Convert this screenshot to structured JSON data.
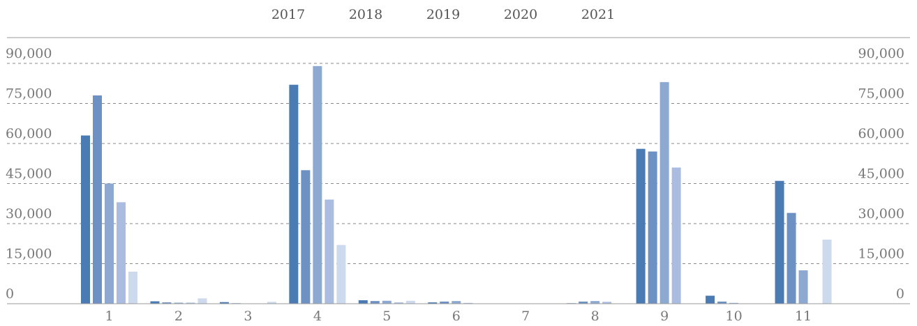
{
  "chart_data": {
    "type": "bar",
    "legend": {
      "placement": "top-center",
      "entries": [
        "2017",
        "2018",
        "2019",
        "2020",
        "2021"
      ]
    },
    "categories": [
      "1",
      "2",
      "3",
      "4",
      "5",
      "6",
      "7",
      "8",
      "9",
      "10",
      "11"
    ],
    "series": [
      {
        "name": "2017",
        "color": "#4a7bb3",
        "values": [
          63000,
          900,
          600,
          82000,
          1300,
          500,
          100,
          200,
          58000,
          3000,
          46000
        ]
      },
      {
        "name": "2018",
        "color": "#6d91c2",
        "values": [
          78000,
          500,
          200,
          50000,
          1000,
          800,
          0,
          800,
          57000,
          800,
          34000
        ]
      },
      {
        "name": "2019",
        "color": "#8da9d1",
        "values": [
          45000,
          400,
          100,
          89000,
          1100,
          1000,
          100,
          1000,
          83000,
          300,
          12500
        ]
      },
      {
        "name": "2020",
        "color": "#aabde0",
        "values": [
          38000,
          400,
          100,
          39000,
          500,
          300,
          0,
          700,
          51000,
          0,
          0
        ]
      },
      {
        "name": "2021",
        "color": "#cdd9ec",
        "values": [
          12000,
          2000,
          700,
          22000,
          1100,
          0,
          0,
          0,
          0,
          0,
          24000
        ]
      }
    ],
    "yticks": [
      "0",
      "15,000",
      "30,000",
      "45,000",
      "60,000",
      "75,000",
      "90,000"
    ],
    "ylim": [
      0,
      90000
    ],
    "grid": true,
    "right_axis_labels": true
  }
}
